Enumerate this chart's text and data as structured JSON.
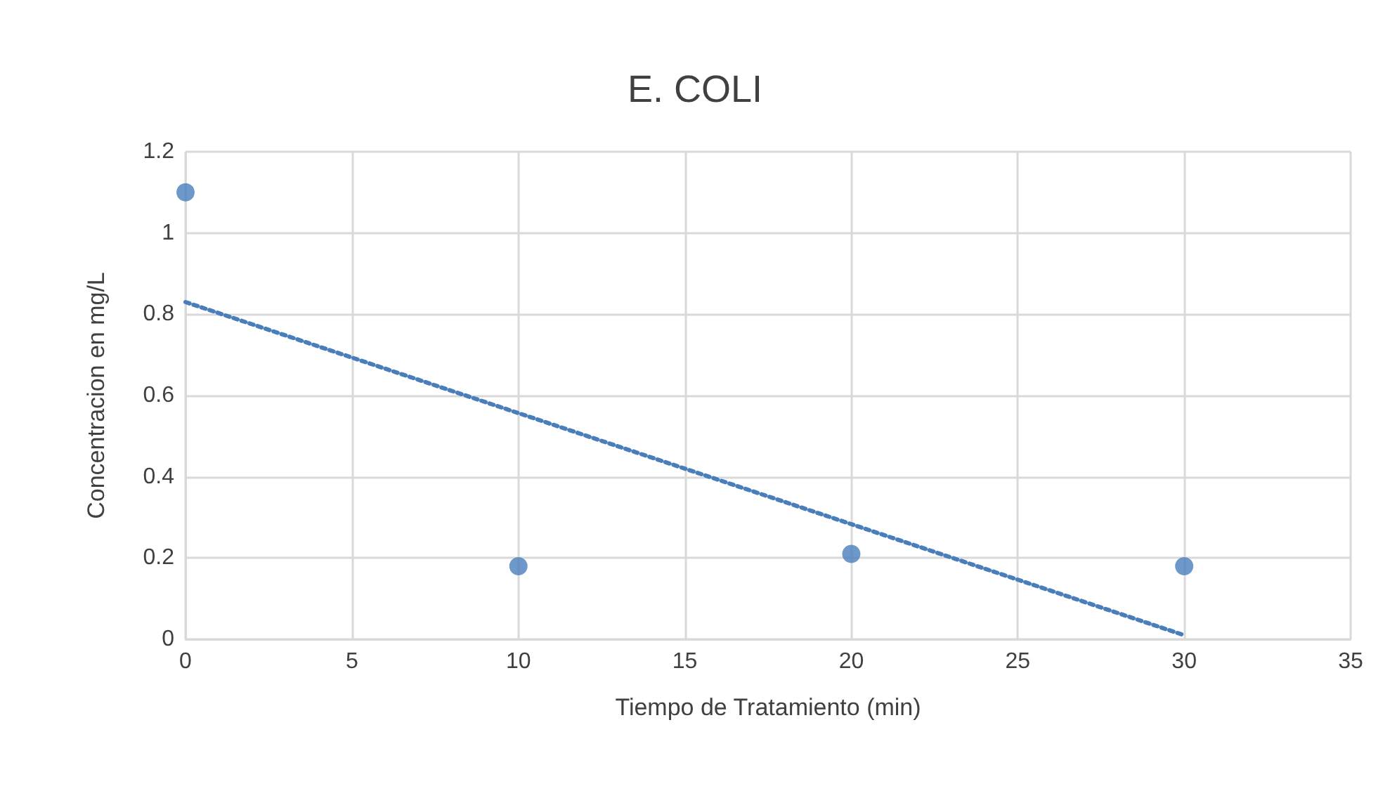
{
  "chart_data": {
    "type": "scatter",
    "title": "E. COLI",
    "xlabel": "Tiempo de Tratamiento (min)",
    "ylabel": "Concentracion en mg/L",
    "xlim": [
      0,
      35
    ],
    "xticks": [
      0,
      5,
      10,
      15,
      20,
      25,
      30,
      35
    ],
    "ylim": [
      0,
      1.2
    ],
    "yticks": [
      0,
      0.2,
      0.4,
      0.6,
      0.8,
      1,
      1.2
    ],
    "grid": true,
    "series": [
      {
        "color": "#4a7ebb",
        "marker": "circle",
        "x": [
          0,
          10,
          20,
          30
        ],
        "values": [
          1.1,
          0.18,
          0.21,
          0.18
        ]
      },
      {
        "type": "line",
        "color": "#4a7ebb",
        "marker": "none",
        "line_style": "dotted",
        "x": [
          0,
          30
        ],
        "values": [
          0.83,
          0.01
        ]
      }
    ]
  }
}
